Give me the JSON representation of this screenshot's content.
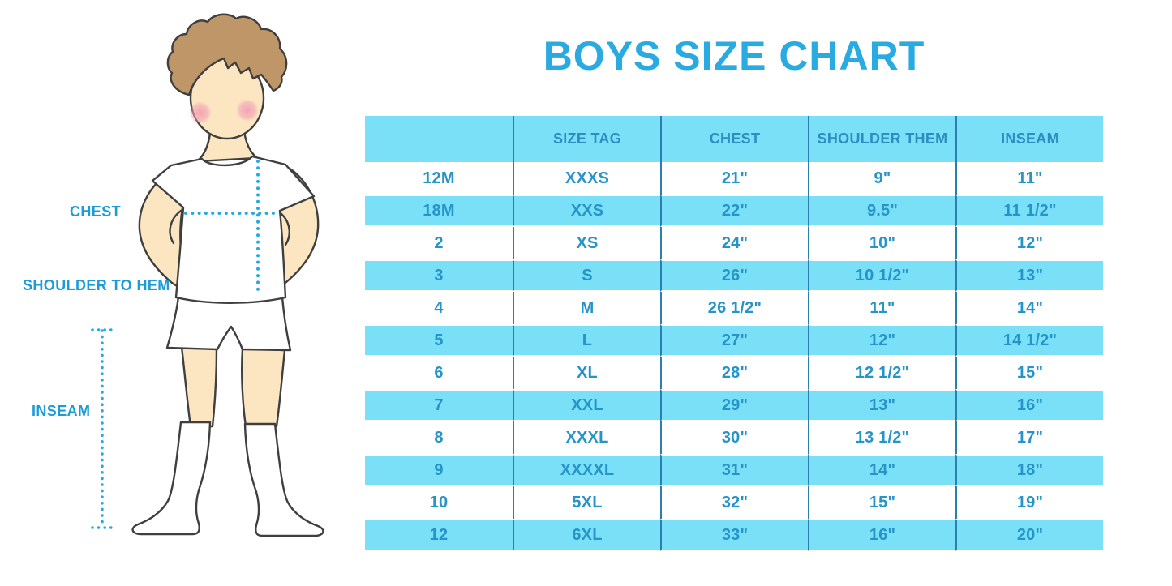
{
  "title": "BOYS SIZE CHART",
  "diagram": {
    "labels": {
      "chest": "CHEST",
      "shoulder_to_hem": "SHOULDER TO HEM",
      "inseam": "INSEAM"
    }
  },
  "colors": {
    "title_blue": "#29abe2",
    "label_blue": "#1b9bd9",
    "table_text_blue": "#2694c9",
    "row_cyan": "#79e0f8",
    "divider_blue": "#2b7fad",
    "dotted_line_cyan": "#28a8e0",
    "skin": "#fce6c2",
    "hair_brown": "#be9668",
    "cheek_pink": "#f3a0b4"
  },
  "chart_data": {
    "type": "table",
    "title": "BOYS SIZE CHART",
    "columns": [
      "",
      "SIZE TAG",
      "CHEST",
      "SHOULDER THEM",
      "INSEAM"
    ],
    "rows": [
      [
        "12M",
        "XXXS",
        "21\"",
        "9\"",
        "11\""
      ],
      [
        "18M",
        "XXS",
        "22\"",
        "9.5\"",
        "11 1/2\""
      ],
      [
        "2",
        "XS",
        "24\"",
        "10\"",
        "12\""
      ],
      [
        "3",
        "S",
        "26\"",
        "10 1/2\"",
        "13\""
      ],
      [
        "4",
        "M",
        "26 1/2\"",
        "11\"",
        "14\""
      ],
      [
        "5",
        "L",
        "27\"",
        "12\"",
        "14 1/2\""
      ],
      [
        "6",
        "XL",
        "28\"",
        "12 1/2\"",
        "15\""
      ],
      [
        "7",
        "XXL",
        "29\"",
        "13\"",
        "16\""
      ],
      [
        "8",
        "XXXL",
        "30\"",
        "13 1/2\"",
        "17\""
      ],
      [
        "9",
        "XXXXL",
        "31\"",
        "14\"",
        "18\""
      ],
      [
        "10",
        "5XL",
        "32\"",
        "15\"",
        "19\""
      ],
      [
        "12",
        "6XL",
        "33\"",
        "16\"",
        "20\""
      ]
    ],
    "layout": {
      "alternating_row_fill": "cyan",
      "grid": "vertical-dividers-only",
      "header_fill": "cyan"
    }
  }
}
